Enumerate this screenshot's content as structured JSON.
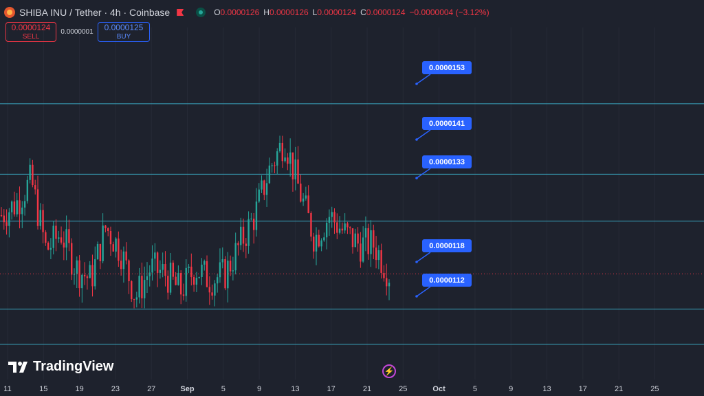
{
  "header": {
    "title": "SHIBA INU / Tether · 4h · Coinbase",
    "open_key": "O",
    "open": "0.0000126",
    "high_key": "H",
    "high": "0.0000126",
    "low_key": "L",
    "low": "0.0000124",
    "close_key": "C",
    "close": "0.0000124",
    "change": "−0.0000004 (−3.12%)",
    "symbol_icon": "shiba-inu-icon",
    "flag_icon": "flag-icon",
    "live_icon": "market-open-icon"
  },
  "trade": {
    "sell_price": "0.0000124",
    "sell_label": "SELL",
    "spread": "0.0000001",
    "buy_price": "0.0000125",
    "buy_label": "BUY"
  },
  "branding": {
    "logo_text": "TradingView"
  },
  "x_ticks": [
    "11",
    "15",
    "19",
    "23",
    "27",
    "Sep",
    "5",
    "9",
    "13",
    "17",
    "21",
    "25",
    "Oct",
    "5",
    "9",
    "13",
    "17",
    "21",
    "25"
  ],
  "levels": [
    "0.0000153",
    "0.0000141",
    "0.0000133",
    "0.0000118",
    "0.0000112"
  ],
  "colors": {
    "background": "#1e222d",
    "up": "#26a69a",
    "down": "#f23645",
    "level_line": "#3aa8c1",
    "label_bg": "#2962ff"
  },
  "chart_data": {
    "type": "candlestick",
    "title": "SHIBA INU / Tether · 4h · Coinbase",
    "x_axis": "date",
    "y_range": [
      1.06e-05,
      1.66e-05
    ],
    "horizontal_levels": [
      1.53e-05,
      1.41e-05,
      1.33e-05,
      1.18e-05,
      1.12e-05
    ],
    "last_price": 1.24e-05,
    "close_path": [
      {
        "label": "11",
        "close": 1.34e-05
      },
      {
        "label": "13",
        "close": 1.36e-05
      },
      {
        "label": "14",
        "close": 1.4e-05
      },
      {
        "label": "15",
        "close": 1.28e-05
      },
      {
        "label": "17",
        "close": 1.31e-05
      },
      {
        "label": "19",
        "close": 1.25e-05
      },
      {
        "label": "21",
        "close": 1.23e-05
      },
      {
        "label": "22",
        "close": 1.32e-05
      },
      {
        "label": "24",
        "close": 1.28e-05
      },
      {
        "label": "25",
        "close": 1.2e-05
      },
      {
        "label": "27",
        "close": 1.25e-05
      },
      {
        "label": "29",
        "close": 1.24e-05
      },
      {
        "label": "Sep",
        "close": 1.21e-05
      },
      {
        "label": "3",
        "close": 1.25e-05
      },
      {
        "label": "5",
        "close": 1.23e-05
      },
      {
        "label": "7",
        "close": 1.24e-05
      },
      {
        "label": "9",
        "close": 1.29e-05
      },
      {
        "label": "11",
        "close": 1.34e-05
      },
      {
        "label": "12",
        "close": 1.42e-05
      },
      {
        "label": "13",
        "close": 1.47e-05
      },
      {
        "label": "14",
        "close": 1.38e-05
      },
      {
        "label": "16",
        "close": 1.3e-05
      },
      {
        "label": "18",
        "close": 1.34e-05
      },
      {
        "label": "19",
        "close": 1.31e-05
      },
      {
        "label": "20",
        "close": 1.29e-05
      },
      {
        "label": "21",
        "close": 1.29e-05
      },
      {
        "label": "22",
        "close": 1.24e-05
      }
    ]
  }
}
